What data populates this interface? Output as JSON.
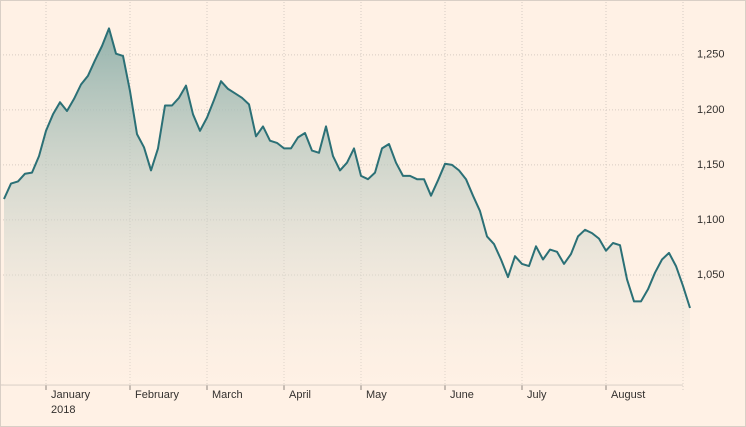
{
  "chart_data": {
    "type": "line",
    "categories": [
      null,
      null,
      null,
      null,
      null,
      null,
      "January",
      null,
      null,
      null,
      null,
      null,
      null,
      null,
      null,
      null,
      null,
      null,
      "February",
      null,
      null,
      null,
      null,
      null,
      null,
      null,
      null,
      null,
      null,
      "March",
      null,
      null,
      null,
      null,
      null,
      null,
      null,
      null,
      null,
      null,
      "April",
      null,
      null,
      null,
      null,
      null,
      null,
      null,
      null,
      null,
      null,
      "May",
      null,
      null,
      null,
      null,
      null,
      null,
      null,
      null,
      null,
      null,
      null,
      "June",
      null,
      null,
      null,
      null,
      null,
      null,
      null,
      null,
      null,
      null,
      "July",
      null,
      null,
      null,
      null,
      null,
      null,
      null,
      null,
      null,
      null,
      null,
      "August",
      null,
      null,
      null,
      null,
      null,
      null,
      null,
      null,
      null,
      null,
      null,
      null
    ],
    "x_year_label": "2018",
    "series": [
      {
        "color": "#2b7076",
        "values": [
          1119,
          1133,
          1135,
          1142,
          1143,
          1158,
          1181,
          1196,
          1207,
          1199,
          1210,
          1223,
          1231,
          1245,
          1258,
          1274,
          1251,
          1249,
          1217,
          1178,
          1166,
          1145,
          1165,
          1204,
          1204,
          1211,
          1222,
          1196,
          1181,
          1193,
          1209,
          1226,
          1219,
          1215,
          1211,
          1205,
          1176,
          1185,
          1172,
          1170,
          1165,
          1165,
          1175,
          1179,
          1163,
          1161,
          1185,
          1158,
          1145,
          1152,
          1165,
          1140,
          1137,
          1143,
          1165,
          1169,
          1152,
          1140,
          1140,
          1137,
          1137,
          1122,
          1136,
          1151,
          1150,
          1145,
          1137,
          1122,
          1108,
          1085,
          1078,
          1064,
          1048,
          1067,
          1060,
          1058,
          1076,
          1064,
          1073,
          1071,
          1060,
          1069,
          1085,
          1091,
          1088,
          1083,
          1072,
          1079,
          1077,
          1046,
          1026,
          1026,
          1037,
          1052,
          1064,
          1070,
          1058,
          1040,
          1020
        ]
      }
    ],
    "ylim": [
      950,
      1298
    ],
    "yticks": [
      {
        "value": 1050,
        "label": "1,050"
      },
      {
        "value": 1100,
        "label": "1,100"
      },
      {
        "value": 1150,
        "label": "1,150"
      },
      {
        "value": 1200,
        "label": "1,200"
      },
      {
        "value": 1250,
        "label": "1,250"
      }
    ],
    "grid": true
  }
}
